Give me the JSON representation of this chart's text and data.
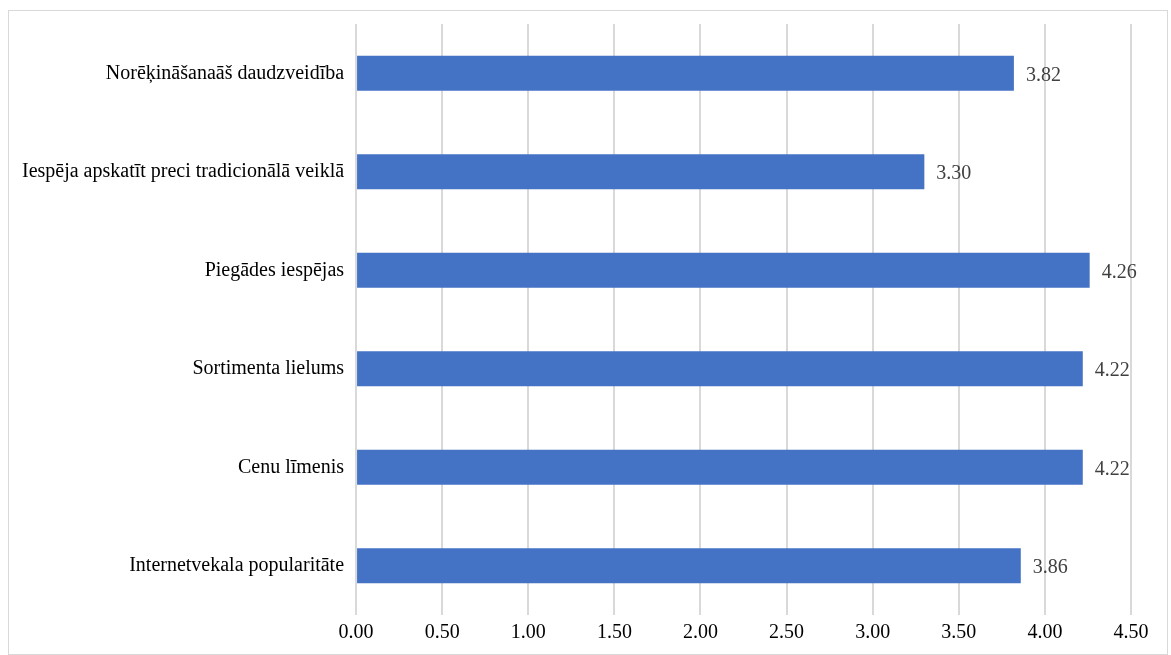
{
  "chart_data": {
    "type": "bar",
    "orientation": "horizontal",
    "categories": [
      "Norēķināšanaāš daudzveidība",
      "Iespēja apskatīt preci tradicionālā veiklā",
      "Piegādes iespējas",
      "Sortimenta lielums",
      "Cenu līmenis",
      "Internetvekala popularitāte"
    ],
    "values": [
      3.82,
      3.3,
      4.26,
      4.22,
      4.22,
      3.86
    ],
    "value_labels": [
      "3.82",
      "3.30",
      "4.26",
      "4.22",
      "4.22",
      "3.86"
    ],
    "color": "#4472c4",
    "xlim": [
      0,
      4.5
    ],
    "xticks": [
      {
        "value": 0,
        "label": "0.00"
      },
      {
        "value": 0.5,
        "label": "0.50"
      },
      {
        "value": 1,
        "label": "1.00"
      },
      {
        "value": 1.5,
        "label": "1.50"
      },
      {
        "value": 2,
        "label": "2.00"
      },
      {
        "value": 2.5,
        "label": "2.50"
      },
      {
        "value": 3,
        "label": "3.00"
      },
      {
        "value": 3.5,
        "label": "3.50"
      },
      {
        "value": 4,
        "label": "4.00"
      },
      {
        "value": 4.5,
        "label": "4.50"
      }
    ],
    "grid": "x",
    "legend": false
  }
}
